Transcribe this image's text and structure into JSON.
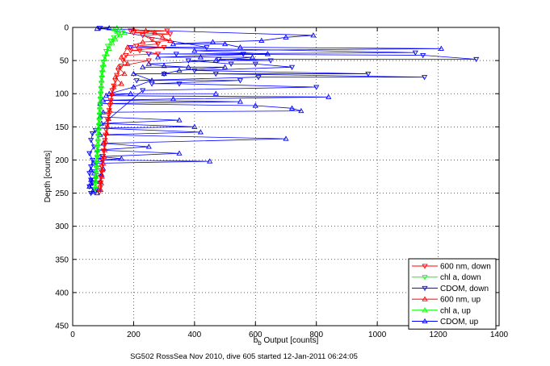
{
  "chart_data": {
    "type": "scatter",
    "caption": "SG502 RossSea Nov 2010, dive 605 started 12-Jan-2011 06:24:05",
    "xlabel_main": "b",
    "xlabel_sub": "b",
    "xlabel_rest": " Output [counts]",
    "ylabel": "Depth [counts]",
    "xlim": [
      0,
      1400
    ],
    "ylim": [
      0,
      450
    ],
    "y_reversed": true,
    "xticks": [
      0,
      200,
      400,
      600,
      800,
      1000,
      1200,
      1400
    ],
    "yticks": [
      0,
      50,
      100,
      150,
      200,
      250,
      300,
      350,
      400,
      450
    ],
    "grid": "dotted",
    "legend_position": "bottom-right",
    "colors": {
      "red": "#ff0000",
      "green": "#00ff00",
      "blue": "#0000ff"
    },
    "legend": [
      {
        "label": "600 nm, down",
        "color": "#ff0000",
        "marker": "triangle-down"
      },
      {
        "label": "chl a, down",
        "color": "#00ff00",
        "marker": "triangle-down"
      },
      {
        "label": "CDOM, down",
        "color": "#0000ff",
        "marker": "triangle-down"
      },
      {
        "label": "600 nm, up",
        "color": "#ff0000",
        "marker": "triangle-up"
      },
      {
        "label": "chl a, up",
        "color": "#00ff00",
        "marker": "triangle-up"
      },
      {
        "label": "CDOM, up",
        "color": "#0000ff",
        "marker": "triangle-up"
      }
    ],
    "series": [
      {
        "name": "CDOM, up",
        "color": "#0000ff",
        "marker": "triangle-up",
        "points": [
          [
            80,
            2
          ],
          [
            120,
            1
          ],
          [
            60,
            215
          ],
          [
            100,
            213
          ],
          [
            70,
            220
          ],
          [
            95,
            222
          ],
          [
            60,
            230
          ],
          [
            90,
            233
          ],
          [
            55,
            240
          ],
          [
            85,
            245
          ],
          [
            65,
            248
          ],
          [
            80,
            250
          ],
          [
            60,
            235
          ],
          [
            75,
            225
          ],
          [
            70,
            205
          ],
          [
            90,
            200
          ],
          [
            160,
            198
          ],
          [
            450,
            202
          ],
          [
            90,
            195
          ],
          [
            350,
            190
          ],
          [
            80,
            185
          ],
          [
            250,
            180
          ],
          [
            100,
            175
          ],
          [
            700,
            168
          ],
          [
            90,
            162
          ],
          [
            420,
            158
          ],
          [
            85,
            152
          ],
          [
            400,
            150
          ],
          [
            95,
            145
          ],
          [
            350,
            140
          ],
          [
            90,
            135
          ],
          [
            720,
            122
          ],
          [
            100,
            128
          ],
          [
            600,
            118
          ],
          [
            90,
            115
          ],
          [
            550,
            112
          ],
          [
            100,
            110
          ],
          [
            330,
            108
          ],
          [
            110,
            103
          ],
          [
            840,
            105
          ],
          [
            120,
            100
          ],
          [
            470,
            100
          ],
          [
            750,
            126
          ],
          [
            200,
            90
          ],
          [
            260,
            80
          ],
          [
            300,
            70
          ],
          [
            380,
            60
          ],
          [
            470,
            50
          ],
          [
            550,
            30
          ],
          [
            620,
            20
          ],
          [
            700,
            15
          ],
          [
            790,
            12
          ],
          [
            640,
            40
          ],
          [
            400,
            35
          ],
          [
            330,
            25
          ],
          [
            280,
            45
          ],
          [
            250,
            55
          ],
          [
            230,
            60
          ],
          [
            200,
            70
          ],
          [
            190,
            100
          ],
          [
            300,
            58
          ],
          [
            350,
            65
          ],
          [
            420,
            45
          ],
          [
            500,
            25
          ],
          [
            1210,
            32
          ],
          [
            460,
            22
          ],
          [
            590,
            45
          ],
          [
            500,
            60
          ]
        ]
      },
      {
        "name": "CDOM, down",
        "color": "#0000ff",
        "marker": "triangle-down",
        "points": [
          [
            90,
            1
          ],
          [
            1325,
            48
          ],
          [
            1150,
            42
          ],
          [
            1125,
            38
          ],
          [
            1155,
            75
          ],
          [
            970,
            70
          ],
          [
            800,
            90
          ],
          [
            610,
            75
          ],
          [
            720,
            60
          ],
          [
            650,
            50
          ],
          [
            520,
            55
          ],
          [
            480,
            48
          ],
          [
            440,
            30
          ],
          [
            380,
            50
          ],
          [
            300,
            70
          ],
          [
            260,
            85
          ],
          [
            230,
            95
          ],
          [
            210,
            80
          ],
          [
            400,
            65
          ],
          [
            340,
            40
          ],
          [
            600,
            55
          ],
          [
            560,
            40
          ],
          [
            550,
            80
          ],
          [
            470,
            70
          ],
          [
            350,
            85
          ],
          [
            250,
            40
          ],
          [
            190,
            30
          ],
          [
            75,
            155
          ],
          [
            65,
            160
          ],
          [
            60,
            170
          ],
          [
            70,
            180
          ],
          [
            55,
            190
          ],
          [
            65,
            200
          ],
          [
            60,
            210
          ],
          [
            55,
            220
          ],
          [
            60,
            230
          ],
          [
            55,
            240
          ],
          [
            60,
            250
          ],
          [
            70,
            245
          ],
          [
            65,
            235
          ]
        ]
      },
      {
        "name": "600 nm, down",
        "color": "#ff0000",
        "marker": "triangle-down",
        "points": [
          [
            190,
            5
          ],
          [
            200,
            8
          ],
          [
            230,
            12
          ],
          [
            260,
            18
          ],
          [
            280,
            25
          ],
          [
            300,
            30
          ],
          [
            310,
            5
          ],
          [
            320,
            10
          ],
          [
            210,
            28
          ],
          [
            190,
            35
          ],
          [
            175,
            42
          ],
          [
            165,
            50
          ],
          [
            160,
            58
          ],
          [
            150,
            65
          ],
          [
            145,
            72
          ],
          [
            140,
            80
          ],
          [
            135,
            88
          ],
          [
            130,
            95
          ],
          [
            128,
            102
          ],
          [
            125,
            110
          ],
          [
            122,
            118
          ],
          [
            120,
            125
          ],
          [
            118,
            132
          ],
          [
            115,
            140
          ],
          [
            112,
            148
          ],
          [
            110,
            155
          ],
          [
            108,
            162
          ],
          [
            106,
            170
          ],
          [
            104,
            178
          ],
          [
            102,
            186
          ],
          [
            100,
            194
          ],
          [
            98,
            202
          ],
          [
            96,
            210
          ],
          [
            95,
            218
          ],
          [
            93,
            226
          ],
          [
            92,
            234
          ],
          [
            90,
            242
          ],
          [
            88,
            248
          ],
          [
            280,
            40
          ],
          [
            250,
            50
          ],
          [
            220,
            35
          ]
        ]
      },
      {
        "name": "600 nm, up",
        "color": "#ff0000",
        "marker": "triangle-up",
        "points": [
          [
            200,
            3
          ],
          [
            240,
            5
          ],
          [
            270,
            8
          ],
          [
            295,
            15
          ],
          [
            320,
            20
          ],
          [
            230,
            22
          ],
          [
            180,
            30
          ],
          [
            160,
            45
          ],
          [
            150,
            60
          ],
          [
            140,
            75
          ],
          [
            135,
            90
          ],
          [
            130,
            100
          ],
          [
            125,
            112
          ],
          [
            122,
            125
          ],
          [
            118,
            138
          ],
          [
            115,
            150
          ],
          [
            112,
            160
          ],
          [
            108,
            172
          ],
          [
            105,
            185
          ],
          [
            103,
            195
          ],
          [
            100,
            205
          ],
          [
            98,
            215
          ],
          [
            96,
            225
          ],
          [
            94,
            235
          ],
          [
            92,
            245
          ],
          [
            180,
            55
          ],
          [
            170,
            70
          ],
          [
            160,
            85
          ]
        ]
      },
      {
        "name": "chl a, down",
        "color": "#00ff00",
        "marker": "triangle-down",
        "points": [
          [
            130,
            2
          ],
          [
            140,
            6
          ],
          [
            150,
            10
          ],
          [
            135,
            15
          ],
          [
            125,
            20
          ],
          [
            115,
            28
          ],
          [
            110,
            36
          ],
          [
            105,
            44
          ],
          [
            100,
            52
          ],
          [
            98,
            60
          ],
          [
            96,
            68
          ],
          [
            95,
            76
          ],
          [
            94,
            84
          ],
          [
            93,
            92
          ],
          [
            92,
            100
          ],
          [
            91,
            108
          ],
          [
            90,
            116
          ],
          [
            89,
            124
          ],
          [
            88,
            132
          ],
          [
            87,
            140
          ],
          [
            86,
            148
          ],
          [
            85,
            156
          ],
          [
            84,
            164
          ],
          [
            83,
            172
          ],
          [
            82,
            180
          ],
          [
            81,
            188
          ],
          [
            80,
            196
          ],
          [
            79,
            204
          ],
          [
            78,
            212
          ],
          [
            77,
            220
          ],
          [
            76,
            228
          ],
          [
            75,
            236
          ],
          [
            74,
            244
          ]
        ]
      },
      {
        "name": "chl a, up",
        "color": "#00ff00",
        "marker": "triangle-up",
        "points": [
          [
            145,
            1
          ],
          [
            160,
            4
          ],
          [
            170,
            8
          ],
          [
            155,
            12
          ],
          [
            140,
            18
          ],
          [
            130,
            24
          ],
          [
            120,
            32
          ],
          [
            112,
            40
          ],
          [
            106,
            48
          ],
          [
            102,
            56
          ],
          [
            99,
            64
          ],
          [
            97,
            72
          ],
          [
            95,
            80
          ],
          [
            94,
            88
          ],
          [
            92,
            96
          ],
          [
            91,
            104
          ],
          [
            90,
            112
          ],
          [
            89,
            120
          ],
          [
            88,
            128
          ],
          [
            87,
            136
          ],
          [
            86,
            144
          ],
          [
            85,
            152
          ],
          [
            84,
            160
          ],
          [
            83,
            168
          ],
          [
            82,
            176
          ],
          [
            81,
            184
          ],
          [
            80,
            192
          ],
          [
            79,
            200
          ],
          [
            78,
            208
          ],
          [
            77,
            216
          ],
          [
            76,
            224
          ],
          [
            75,
            232
          ],
          [
            74,
            240
          ]
        ]
      }
    ]
  }
}
